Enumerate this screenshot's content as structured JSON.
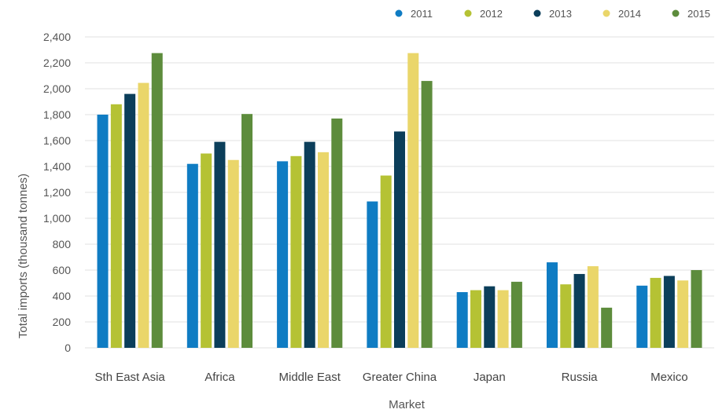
{
  "chart_data": {
    "type": "bar",
    "categories": [
      "Sth East Asia",
      "Africa",
      "Middle East",
      "Greater China",
      "Japan",
      "Russia",
      "Mexico"
    ],
    "series": [
      {
        "name": "2011",
        "color": "#0f7cc3",
        "values": [
          1800,
          1420,
          1440,
          1130,
          430,
          660,
          480
        ]
      },
      {
        "name": "2012",
        "color": "#b5c234",
        "values": [
          1880,
          1500,
          1480,
          1330,
          445,
          490,
          540
        ]
      },
      {
        "name": "2013",
        "color": "#0b3e5a",
        "values": [
          1960,
          1590,
          1590,
          1670,
          475,
          570,
          555
        ]
      },
      {
        "name": "2014",
        "color": "#ead66a",
        "values": [
          2045,
          1450,
          1510,
          2275,
          445,
          630,
          520
        ]
      },
      {
        "name": "2015",
        "color": "#5d8c3c",
        "values": [
          2275,
          1805,
          1770,
          2060,
          510,
          310,
          600
        ]
      }
    ],
    "xlabel": "Market",
    "ylabel": "Total imports (thousand tonnes)",
    "ylim": [
      0,
      2400
    ],
    "yticks": [
      "0",
      "200",
      "400",
      "600",
      "800",
      "1,000",
      "1,200",
      "1,400",
      "1,600",
      "1,800",
      "2,000",
      "2,200",
      "2,400"
    ],
    "grid": true,
    "legend_position": "top-right"
  }
}
